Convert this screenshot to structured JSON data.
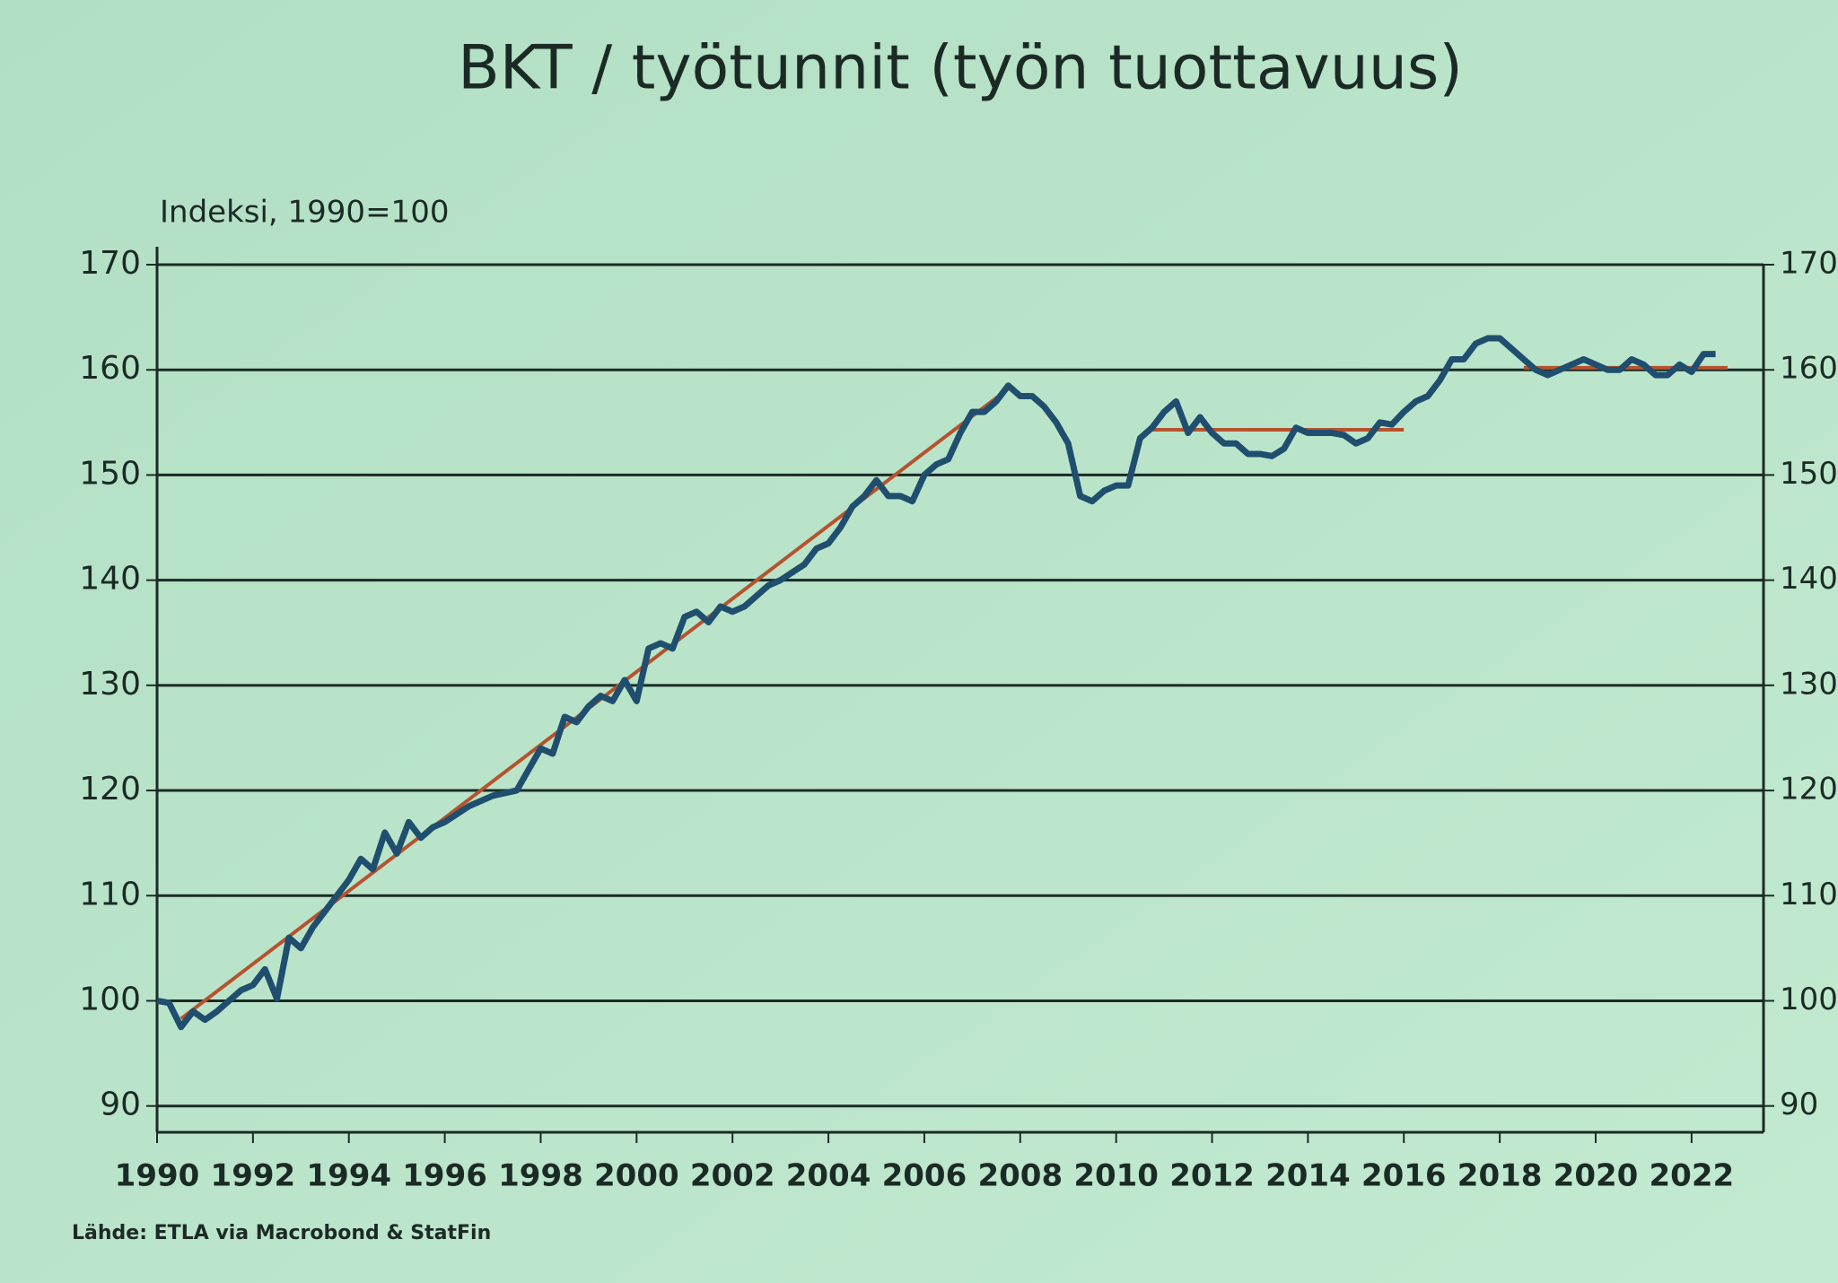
{
  "chart_data": {
    "type": "line",
    "title": "BKT / työtunnit (työn tuottavuus)",
    "y_label": "Indeksi, 1990=100",
    "source": "Lähde: ETLA via Macrobond & StatFin",
    "xlim": [
      1990,
      2023.5
    ],
    "xticks": [
      1990,
      1992,
      1994,
      1996,
      1998,
      2000,
      2002,
      2004,
      2006,
      2008,
      2010,
      2012,
      2014,
      2016,
      2018,
      2020,
      2022
    ],
    "ylim": [
      87.5,
      170
    ],
    "yticks": [
      90,
      100,
      110,
      120,
      130,
      140,
      150,
      160,
      170
    ],
    "y2lim": [
      87.5,
      170
    ],
    "y2ticks": [
      90,
      100,
      110,
      120,
      130,
      140,
      150,
      160,
      170
    ],
    "grid": true,
    "series": [
      {
        "color": "#1f4e6e",
        "x": [
          1990.0,
          1990.25,
          1990.5,
          1990.75,
          1991.0,
          1991.25,
          1991.5,
          1991.75,
          1992.0,
          1992.25,
          1992.5,
          1992.75,
          1993.0,
          1993.25,
          1993.5,
          1993.75,
          1994.0,
          1994.25,
          1994.5,
          1994.75,
          1995.0,
          1995.25,
          1995.5,
          1995.75,
          1996.0,
          1996.5,
          1997.0,
          1997.5,
          1997.75,
          1998.0,
          1998.25,
          1998.5,
          1998.75,
          1999.0,
          1999.25,
          1999.5,
          1999.75,
          2000.0,
          2000.25,
          2000.5,
          2000.75,
          2001.0,
          2001.25,
          2001.5,
          2001.75,
          2002.0,
          2002.25,
          2002.5,
          2002.75,
          2003.0,
          2003.5,
          2003.75,
          2004.0,
          2004.25,
          2004.5,
          2004.75,
          2005.0,
          2005.25,
          2005.5,
          2005.75,
          2006.0,
          2006.25,
          2006.5,
          2006.75,
          2007.0,
          2007.25,
          2007.5,
          2007.75,
          2008.0,
          2008.25,
          2008.5,
          2008.75,
          2009.0,
          2009.25,
          2009.5,
          2009.75,
          2010.0,
          2010.25,
          2010.5,
          2010.75,
          2011.0,
          2011.25,
          2011.5,
          2011.75,
          2012.0,
          2012.25,
          2012.5,
          2012.75,
          2013.0,
          2013.25,
          2013.5,
          2013.75,
          2014.0,
          2014.5,
          2014.75,
          2015.0,
          2015.25,
          2015.5,
          2015.75,
          2016.0,
          2016.25,
          2016.5,
          2016.75,
          2017.0,
          2017.25,
          2017.5,
          2017.75,
          2018.0,
          2018.25,
          2018.5,
          2018.75,
          2019.0,
          2019.25,
          2019.5,
          2019.75,
          2020.0,
          2020.25,
          2020.5,
          2020.75,
          2021.0,
          2021.25,
          2021.5,
          2021.75,
          2022.0,
          2022.25,
          2022.5
        ],
        "values": [
          100,
          99.8,
          97.5,
          99,
          98.2,
          99,
          100,
          101,
          101.5,
          103,
          100.2,
          106,
          105,
          107,
          108.5,
          110,
          111.5,
          113.5,
          112.5,
          116,
          114,
          117,
          115.5,
          116.5,
          117,
          118.5,
          119.5,
          120,
          122,
          124,
          123.5,
          127,
          126.5,
          128,
          129,
          128.5,
          130.5,
          128.5,
          133.5,
          134,
          133.5,
          136.5,
          137,
          136,
          137.5,
          137,
          137.5,
          138.5,
          139.5,
          140,
          141.5,
          143,
          143.5,
          145,
          147,
          148,
          149.5,
          148,
          148,
          147.5,
          150,
          151,
          151.5,
          154,
          156,
          156,
          157,
          158.5,
          157.5,
          157.5,
          156.5,
          155,
          153,
          148,
          147.5,
          148.5,
          149,
          149,
          153.5,
          154.5,
          156,
          157,
          154,
          155.5,
          154,
          153,
          153,
          152,
          152,
          151.8,
          152.5,
          154.5,
          154,
          154,
          153.8,
          153,
          153.5,
          155,
          154.8,
          156,
          157,
          157.5,
          159,
          161,
          161,
          162.5,
          163,
          163,
          162,
          161,
          160,
          159.5,
          160,
          160.5,
          161,
          160.5,
          160,
          160,
          161,
          160.5,
          159.5,
          159.5,
          160.5,
          159.8,
          161.5,
          161.5
        ]
      },
      {
        "color": "#b5532e",
        "x": [
          1990.5,
          2007.75
        ],
        "values": [
          98.3,
          158.2
        ]
      },
      {
        "color": "#b5532e",
        "x": [
          2010.75,
          2016
        ],
        "values": [
          154.3,
          154.3
        ]
      },
      {
        "color": "#b5532e",
        "x": [
          2018.5,
          2022.75
        ],
        "values": [
          160.2,
          160.2
        ]
      }
    ]
  }
}
